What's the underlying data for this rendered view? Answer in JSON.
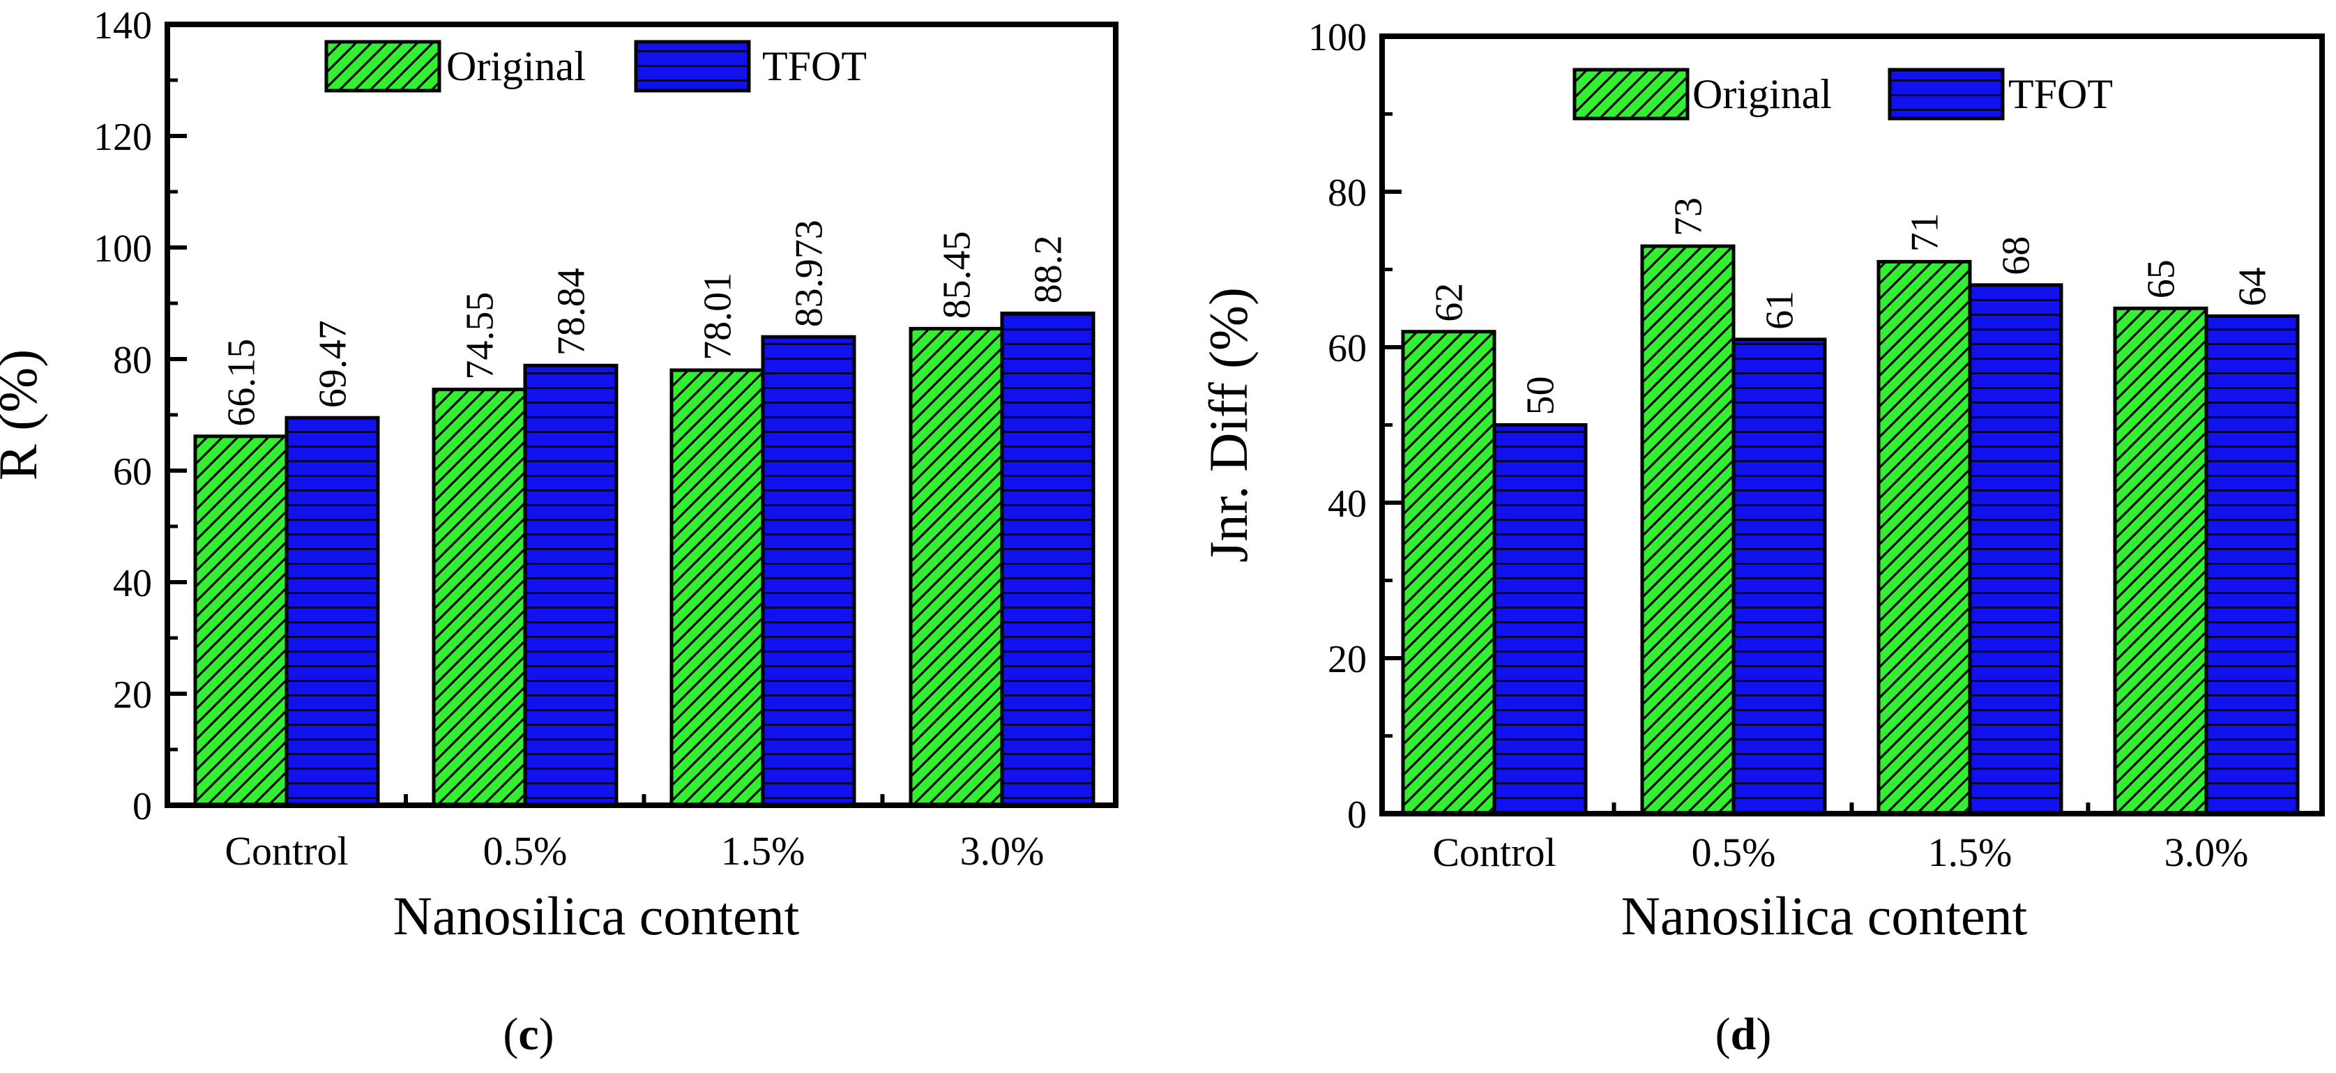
{
  "colors": {
    "original_fill": "#33ee33",
    "tfot_fill": "#1111ee",
    "stroke": "#000000"
  },
  "chart_data": [
    {
      "type": "bar",
      "panel": "(c)",
      "panel_letter": "c",
      "categories": [
        "Control",
        "0.5%",
        "1.5%",
        "3.0%"
      ],
      "series": [
        {
          "name": "Original",
          "values": [
            66.15,
            74.55,
            78.01,
            85.45
          ],
          "labels": [
            "66.15",
            "74.55",
            "78.01",
            "85.45"
          ],
          "pattern": "diagonal-hatch"
        },
        {
          "name": "TFOT",
          "values": [
            69.47,
            78.84,
            83.973,
            88.2
          ],
          "labels": [
            "69.47",
            "78.84",
            "83.973",
            "88.2"
          ],
          "pattern": "horizontal-lines"
        }
      ],
      "xlabel": "Nanosilica content",
      "ylabel": "R (%)",
      "ylim": [
        0,
        140
      ],
      "yticks": [
        0,
        20,
        40,
        60,
        80,
        100,
        120,
        140
      ],
      "legend": "top-center"
    },
    {
      "type": "bar",
      "panel": "(d)",
      "panel_letter": "d",
      "categories": [
        "Control",
        "0.5%",
        "1.5%",
        "3.0%"
      ],
      "series": [
        {
          "name": "Original",
          "values": [
            62,
            73,
            71,
            65
          ],
          "labels": [
            "62",
            "73",
            "71",
            "65"
          ],
          "pattern": "diagonal-hatch"
        },
        {
          "name": "TFOT",
          "values": [
            50,
            61,
            68,
            64
          ],
          "labels": [
            "50",
            "61",
            "68",
            "64"
          ],
          "pattern": "horizontal-lines"
        }
      ],
      "xlabel": "Nanosilica content",
      "ylabel": "Jnr. Diff (%)",
      "ylim": [
        0,
        100
      ],
      "yticks": [
        0,
        20,
        40,
        60,
        80,
        100
      ],
      "legend": "top-center"
    }
  ]
}
